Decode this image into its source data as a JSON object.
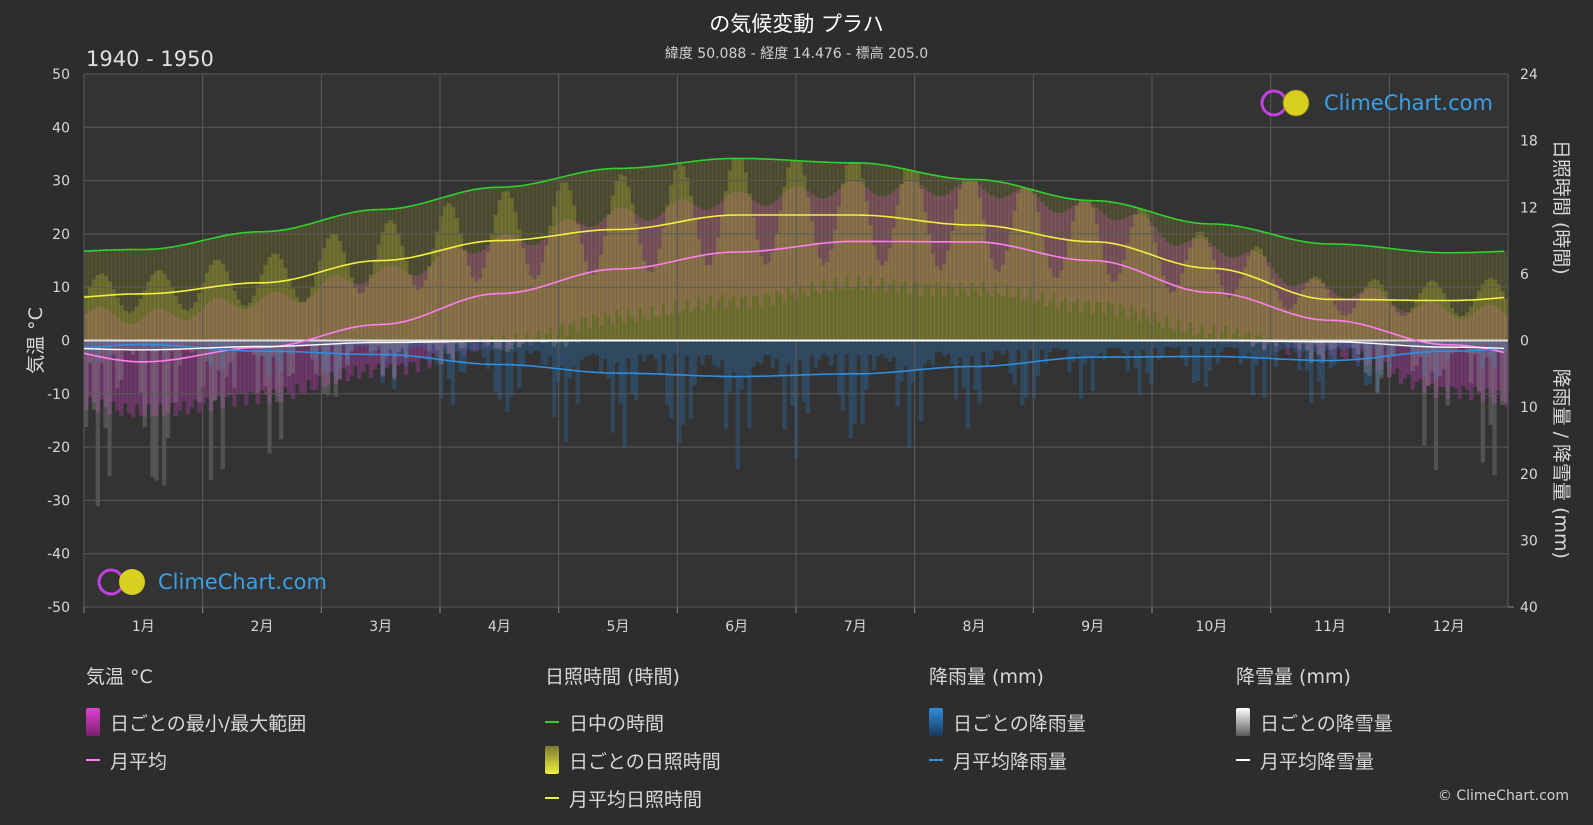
{
  "title": "の気候変動 プラハ",
  "subtitle": "緯度 50.088 - 経度 14.476 - 標高 205.0",
  "period": "1940 - 1950",
  "logo_text": "ClimeChart.com",
  "copyright": "© ClimeChart.com",
  "left_axis_label": "気温 °C",
  "right_axis_label_top": "日照時間 (時間)",
  "right_axis_label_bottom": "降雨量 / 降雪量 (mm)",
  "colors": {
    "background": "#2d2d2d",
    "daylight": "#2ed12e",
    "sunshine_avg": "#f0f040",
    "temp_avg": "#ff7ff0",
    "rain_avg": "#2f8fe0",
    "snow_avg": "#ffffff",
    "temp_range": "#e040d0",
    "sunshine_bar": "#a0a030",
    "rain_bar": "#2a6fb0",
    "snow_bar": "#9a9a9a"
  },
  "legend": {
    "temp": {
      "head": "気温 °C",
      "range": "日ごとの最小/最大範囲",
      "avg": "月平均"
    },
    "sun": {
      "head": "日照時間 (時間)",
      "daylight": "日中の時間",
      "daily": "日ごとの日照時間",
      "avg": "月平均日照時間"
    },
    "rain": {
      "head": "降雨量 (mm)",
      "daily": "日ごとの降雨量",
      "avg": "月平均降雨量"
    },
    "snow": {
      "head": "降雪量 (mm)",
      "daily": "日ごとの降雪量",
      "avg": "月平均降雪量"
    }
  },
  "chart_data": {
    "type": "line",
    "categories": [
      "1月",
      "2月",
      "3月",
      "4月",
      "5月",
      "6月",
      "7月",
      "8月",
      "9月",
      "10月",
      "11月",
      "12月"
    ],
    "left_axis": {
      "label": "気温 °C",
      "ylim": [
        -50,
        50
      ],
      "ticks": [
        50,
        40,
        30,
        20,
        10,
        0,
        -10,
        -20,
        -30,
        -40,
        -50
      ]
    },
    "right_axis_top": {
      "label": "日照時間 (時間)",
      "ylim": [
        0,
        24
      ],
      "ticks": [
        24,
        18,
        12,
        6,
        0
      ]
    },
    "right_axis_bottom": {
      "label": "降雨量 / 降雪量 (mm)",
      "ylim": [
        0,
        40
      ],
      "ticks": [
        0,
        10,
        20,
        30,
        40
      ]
    },
    "grid": true,
    "series": [
      {
        "name": "日中の時間",
        "axis": "sunshine_hours",
        "values": [
          8.2,
          9.8,
          11.8,
          13.8,
          15.5,
          16.4,
          16.0,
          14.5,
          12.6,
          10.5,
          8.7,
          7.9
        ]
      },
      {
        "name": "月平均日照時間",
        "axis": "sunshine_hours",
        "values": [
          4.2,
          5.2,
          7.2,
          9.0,
          10.0,
          11.3,
          11.3,
          10.4,
          8.9,
          6.5,
          3.7,
          3.6
        ]
      },
      {
        "name": "月平均",
        "axis": "temperature_c",
        "values": [
          -4.0,
          -1.3,
          3.0,
          8.8,
          13.4,
          16.6,
          18.6,
          18.5,
          15.0,
          9.0,
          3.8,
          -0.8
        ]
      },
      {
        "name": "月平均降雨量",
        "axis": "precipitation_mm",
        "values": [
          0.6,
          1.6,
          2.1,
          3.6,
          4.9,
          5.4,
          5.0,
          3.9,
          2.5,
          2.4,
          3.0,
          1.6
        ]
      },
      {
        "name": "月平均降雪量",
        "axis": "precipitation_mm",
        "values": [
          1.4,
          0.9,
          0.3,
          0.1,
          0.0,
          0.0,
          0.0,
          0.0,
          0.0,
          0.0,
          0.2,
          1.0
        ]
      }
    ],
    "temperature_range": {
      "min": [
        -12,
        -9,
        -4,
        1,
        6,
        9,
        12,
        11,
        8,
        3,
        -1,
        -8
      ],
      "max": [
        3,
        6,
        11,
        17,
        22,
        25,
        27,
        27,
        23,
        16,
        8,
        4
      ]
    }
  }
}
